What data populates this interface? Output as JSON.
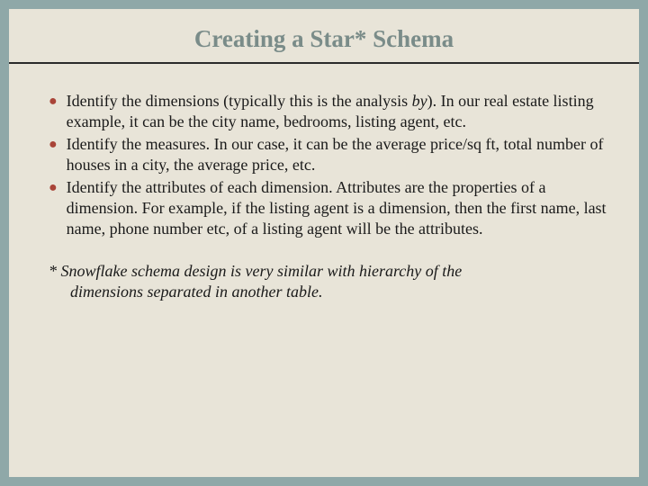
{
  "slide": {
    "background_outer": "#8fa8a8",
    "background_inner": "#e8e4d8",
    "title": "Creating a Star* Schema",
    "title_color": "#7a8c89",
    "title_fontsize": 27,
    "rule_color": "#2a2a2a",
    "bullet_color": "#a94438",
    "body_fontsize": 18,
    "body_color": "#1a1a1a",
    "bullets": [
      {
        "pre": "Identify the dimensions (typically this is the analysis ",
        "emph": "by",
        "post": ").  In our real estate listing example, it can be the city name, bedrooms, listing agent, etc."
      },
      {
        "text": "Identify the measures.  In our case, it can be the average price/sq ft, total number of houses in a city, the average price, etc."
      },
      {
        "text": "Identify the attributes of each dimension.  Attributes are the properties of a dimension.  For example, if the listing agent is a dimension, then the first name, last name, phone number etc, of a listing agent will be the attributes."
      }
    ],
    "footnote_line1": "* Snowflake schema design is very similar with hierarchy of the",
    "footnote_line2": "dimensions separated in another table."
  }
}
